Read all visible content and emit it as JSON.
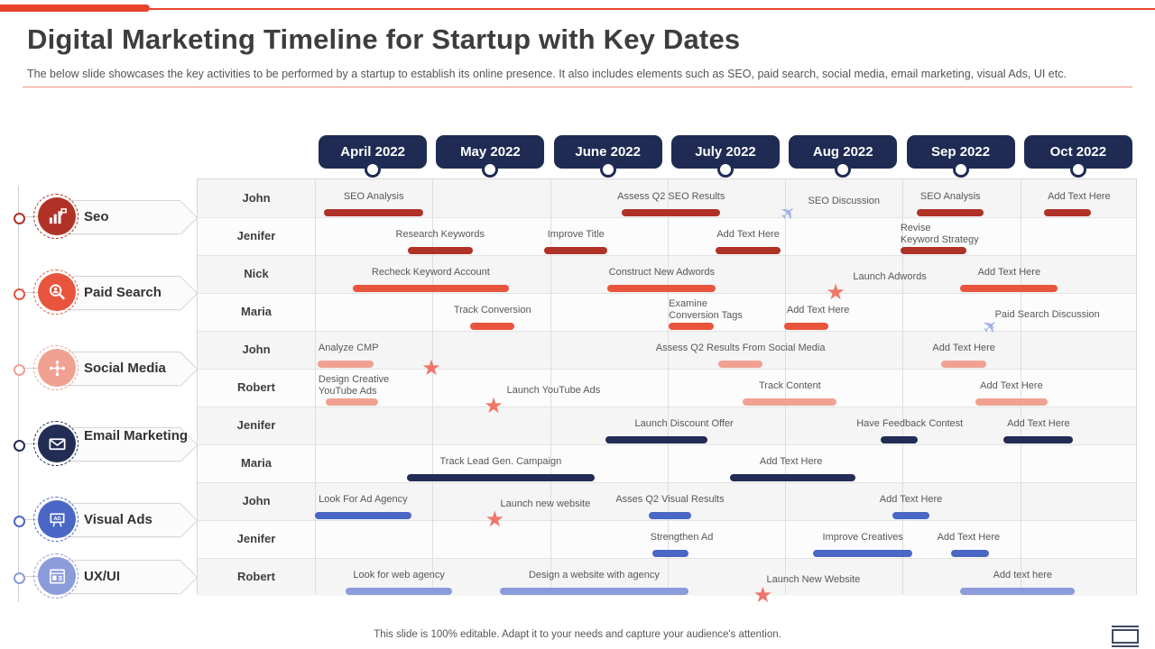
{
  "header": {
    "title": "Digital Marketing Timeline for Startup with Key Dates",
    "subtitle": "The below slide showcases the key activities to be performed by a startup to establish its online presence. It also includes elements such as SEO, paid search, social media, email marketing, visual Ads, UI etc."
  },
  "footer": {
    "text": "This slide is 100% editable. Adapt it to your needs and capture your audience's attention."
  },
  "colors": {
    "accent": "#E8432C",
    "month_header": "#1F2B53",
    "seo": "#B03226",
    "paid_search": "#E8543C",
    "social_media": "#F0A192",
    "email_marketing": "#232C54",
    "visual_ads": "#4A67C5",
    "ux_ui": "#8C9BD9",
    "star": "#F0756A",
    "plane": "#9DB1E8"
  },
  "categories": [
    {
      "label": "Seo",
      "icon": "seo-icon",
      "section": "seo",
      "row_span": [
        0,
        1
      ]
    },
    {
      "label": "Paid Search",
      "icon": "paid-search-icon",
      "section": "paid_search",
      "row_span": [
        2,
        3
      ]
    },
    {
      "label": "Social Media",
      "icon": "social-media-icon",
      "section": "social_media",
      "row_span": [
        4,
        5
      ]
    },
    {
      "label": "Email Marketing",
      "icon": "email-marketing-icon",
      "section": "email_marketing",
      "row_span": [
        6,
        7
      ]
    },
    {
      "label": "Visual Ads",
      "icon": "visual-ads-icon",
      "section": "visual_ads",
      "row_span": [
        8,
        9
      ]
    },
    {
      "label": "UX/UI",
      "icon": "ux-ui-icon",
      "section": "ux_ui",
      "row_span": [
        10,
        10
      ]
    }
  ],
  "chart_data": {
    "type": "gantt-timeline",
    "x_unit": "months (0 = start of April 2022, 7 = end of Oct 2022)",
    "x_categories": [
      "April 2022",
      "May 2022",
      "June  2022",
      "July 2022",
      "Aug 2022",
      "Sep 2022",
      "Oct 2022"
    ],
    "rows": [
      {
        "name": "John",
        "section": "seo"
      },
      {
        "name": "Jenifer",
        "section": "seo"
      },
      {
        "name": "Nick",
        "section": "paid_search"
      },
      {
        "name": "Maria",
        "section": "paid_search"
      },
      {
        "name": "John",
        "section": "social_media"
      },
      {
        "name": "Robert",
        "section": "social_media"
      },
      {
        "name": "Jenifer",
        "section": "email_marketing"
      },
      {
        "name": "Maria",
        "section": "email_marketing"
      },
      {
        "name": "John",
        "section": "visual_ads"
      },
      {
        "name": "Jenifer",
        "section": "visual_ads"
      },
      {
        "name": "Robert",
        "section": "ux_ui"
      }
    ],
    "tasks": [
      {
        "row": 0,
        "section": "seo",
        "label": "SEO Analysis",
        "marker": "bar",
        "start": 0.08,
        "end": 0.92
      },
      {
        "row": 0,
        "section": "seo",
        "label": "Assess Q2 SEO Results",
        "marker": "bar",
        "start": 2.61,
        "end": 3.45
      },
      {
        "row": 0,
        "section": "seo",
        "label": "SEO Discussion",
        "marker": "plane",
        "label_x": 4.5,
        "marker_x": 4.03
      },
      {
        "row": 0,
        "section": "seo",
        "label": "SEO Analysis",
        "marker": "bar",
        "start": 5.12,
        "end": 5.69
      },
      {
        "row": 0,
        "section": "seo",
        "label": "Add Text Here",
        "marker": "bar",
        "start": 6.2,
        "end": 6.6,
        "label_x": 6.5
      },
      {
        "row": 1,
        "section": "seo",
        "label": "Research Keywords",
        "marker": "bar",
        "start": 0.79,
        "end": 1.34
      },
      {
        "row": 1,
        "section": "seo",
        "label": "Improve Title",
        "marker": "bar",
        "start": 1.95,
        "end": 2.49
      },
      {
        "row": 1,
        "section": "seo",
        "label": "Add Text Here",
        "marker": "bar",
        "start": 3.41,
        "end": 3.96
      },
      {
        "row": 1,
        "section": "seo",
        "label": "Revise",
        "label2": "Keyword Strategy",
        "label_align": "left",
        "label_x": 4.98,
        "marker": "bar",
        "start": 4.98,
        "end": 5.54
      },
      {
        "row": 2,
        "section": "paid_search",
        "label": "Recheck Keyword Account",
        "marker": "bar",
        "start": 0.32,
        "end": 1.65
      },
      {
        "row": 2,
        "section": "paid_search",
        "label": "Construct New Adwords",
        "marker": "bar",
        "start": 2.49,
        "end": 3.41
      },
      {
        "row": 2,
        "section": "paid_search",
        "label": "Launch Adwords",
        "marker": "star",
        "label_x": 4.89,
        "marker_x": 4.43
      },
      {
        "row": 2,
        "section": "paid_search",
        "label": "Add Text Here",
        "marker": "bar",
        "start": 5.49,
        "end": 6.32
      },
      {
        "row": 3,
        "section": "paid_search",
        "label": "Track Conversion",
        "marker": "bar",
        "start": 1.32,
        "end": 1.7
      },
      {
        "row": 3,
        "section": "paid_search",
        "label": "Examine",
        "label2": "Conversion Tags",
        "label_align": "left",
        "label_x": 3.01,
        "marker": "bar",
        "start": 3.01,
        "end": 3.39
      },
      {
        "row": 3,
        "section": "paid_search",
        "label": "Add Text Here",
        "marker": "bar",
        "start": 3.99,
        "end": 4.37,
        "label_x": 4.28
      },
      {
        "row": 3,
        "section": "paid_search",
        "label": "Paid Search Discussion",
        "marker": "plane",
        "label_x": 6.23,
        "marker_x": 5.75
      },
      {
        "row": 4,
        "section": "social_media",
        "label": "Analyze CMP",
        "label_align": "left",
        "label_x": 0.03,
        "marker": "bar",
        "start": 0.02,
        "end": 0.5
      },
      {
        "row": 4,
        "section": "social_media",
        "label": "",
        "marker": "star",
        "marker_x": 0.99
      },
      {
        "row": 4,
        "section": "social_media",
        "label": "Assess Q2 Results From Social Media",
        "marker": "bar",
        "start": 3.43,
        "end": 3.81
      },
      {
        "row": 4,
        "section": "social_media",
        "label": "Add Text Here",
        "marker": "bar",
        "start": 5.33,
        "end": 5.71
      },
      {
        "row": 5,
        "section": "social_media",
        "label": "Design Creative",
        "label2": "YouTube Ads",
        "label_align": "left",
        "label_x": 0.03,
        "marker": "bar",
        "start": 0.09,
        "end": 0.54
      },
      {
        "row": 5,
        "section": "social_media",
        "label": "Launch YouTube Ads",
        "marker": "star",
        "label_x": 2.03,
        "marker_x": 1.52
      },
      {
        "row": 5,
        "section": "social_media",
        "label": "Track Content",
        "marker": "bar",
        "start": 3.64,
        "end": 4.44
      },
      {
        "row": 5,
        "section": "social_media",
        "label": "Add Text Here",
        "marker": "bar",
        "start": 5.62,
        "end": 6.23
      },
      {
        "row": 6,
        "section": "email_marketing",
        "label": "Launch Discount Offer",
        "marker": "bar",
        "start": 2.47,
        "end": 3.34,
        "label_x": 3.14
      },
      {
        "row": 6,
        "section": "email_marketing",
        "label": "Have Feedback Contest",
        "marker": "bar",
        "start": 4.81,
        "end": 5.13,
        "label_x": 5.06
      },
      {
        "row": 6,
        "section": "email_marketing",
        "label": "Add Text Here",
        "marker": "bar",
        "start": 5.86,
        "end": 6.45
      },
      {
        "row": 7,
        "section": "email_marketing",
        "label": "Track Lead Gen. Campaign",
        "marker": "bar",
        "start": 0.78,
        "end": 2.38
      },
      {
        "row": 7,
        "section": "email_marketing",
        "label": "Add Text Here",
        "marker": "bar",
        "start": 3.53,
        "end": 4.6,
        "label_x": 4.05
      },
      {
        "row": 8,
        "section": "visual_ads",
        "label": "Look For Ad Agency",
        "marker": "bar",
        "start": 0.0,
        "end": 0.82
      },
      {
        "row": 8,
        "section": "visual_ads",
        "label": "Launch new website",
        "marker": "star",
        "label_x": 1.96,
        "marker_x": 1.53
      },
      {
        "row": 8,
        "section": "visual_ads",
        "label": "Asses Q2 Visual Results",
        "marker": "bar",
        "start": 2.84,
        "end": 3.2,
        "label_x": 3.02
      },
      {
        "row": 8,
        "section": "visual_ads",
        "label": "Add Text Here",
        "marker": "bar",
        "start": 4.91,
        "end": 5.23
      },
      {
        "row": 9,
        "section": "visual_ads",
        "label": "Strengthen Ad",
        "marker": "bar",
        "start": 2.87,
        "end": 3.18,
        "label_x": 3.12
      },
      {
        "row": 9,
        "section": "visual_ads",
        "label": "Improve Creatives",
        "marker": "bar",
        "start": 4.24,
        "end": 5.08,
        "label_x": 4.66
      },
      {
        "row": 9,
        "section": "visual_ads",
        "label": "Add Text Here",
        "marker": "bar",
        "start": 5.41,
        "end": 5.73,
        "label_x": 5.56
      },
      {
        "row": 10,
        "section": "ux_ui",
        "label": "Look for web agency",
        "marker": "bar",
        "start": 0.26,
        "end": 1.17
      },
      {
        "row": 10,
        "section": "ux_ui",
        "label": "Design a website with agency",
        "marker": "bar",
        "start": 1.57,
        "end": 3.18
      },
      {
        "row": 10,
        "section": "ux_ui",
        "label": "Launch New Website",
        "marker": "star",
        "label_x": 4.24,
        "marker_x": 3.81
      },
      {
        "row": 10,
        "section": "ux_ui",
        "label": "Add text here",
        "marker": "bar",
        "start": 5.49,
        "end": 6.46,
        "label_x": 6.02
      }
    ]
  }
}
